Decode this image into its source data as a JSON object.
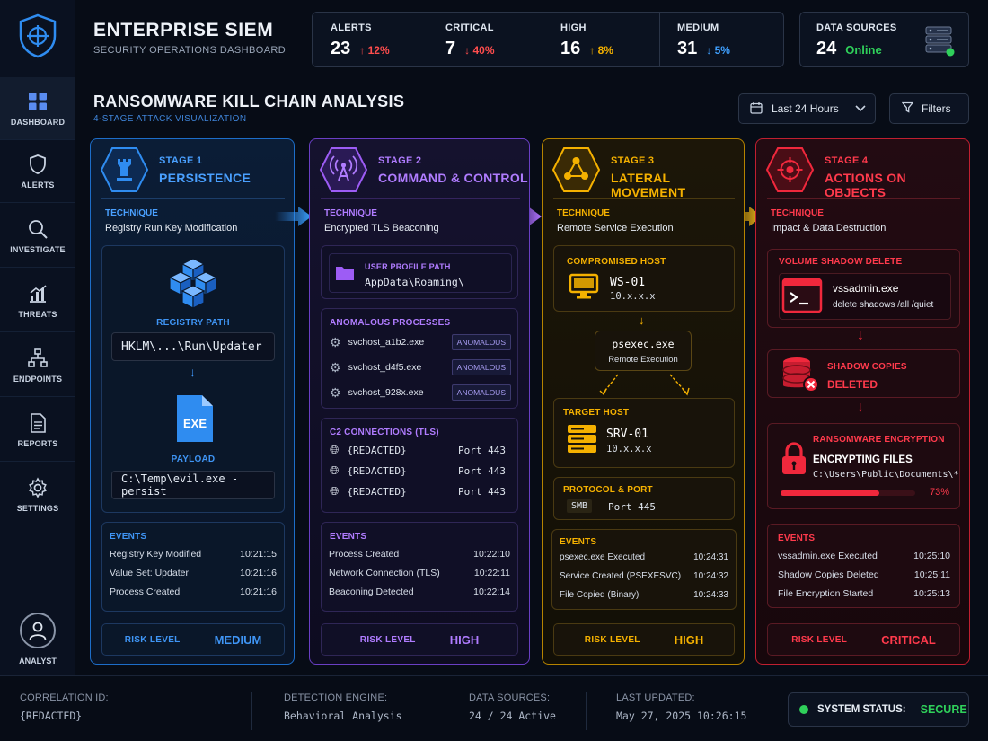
{
  "app": {
    "title": "ENTERPRISE SIEM",
    "subtitle": "SECURITY OPERATIONS DASHBOARD"
  },
  "sidebar": {
    "items": [
      {
        "label": "DASHBOARD",
        "icon": "grid-icon"
      },
      {
        "label": "ALERTS",
        "icon": "shield-icon"
      },
      {
        "label": "INVESTIGATE",
        "icon": "search-icon"
      },
      {
        "label": "THREATS",
        "icon": "chart-icon"
      },
      {
        "label": "ENDPOINTS",
        "icon": "network-icon"
      },
      {
        "label": "REPORTS",
        "icon": "document-icon"
      },
      {
        "label": "SETTINGS",
        "icon": "gear-icon"
      }
    ],
    "user_label": "ANALYST"
  },
  "stats": [
    {
      "label": "ALERTS",
      "value": "23",
      "delta": "12%",
      "direction": "up",
      "color": "#ff4d4d"
    },
    {
      "label": "CRITICAL",
      "value": "7",
      "delta": "40%",
      "direction": "down",
      "color": "#ff4d4d"
    },
    {
      "label": "HIGH",
      "value": "16",
      "delta": "8%",
      "direction": "up",
      "color": "#f5b100"
    },
    {
      "label": "MEDIUM",
      "value": "31",
      "delta": "5%",
      "direction": "down",
      "color": "#3fa0ff"
    }
  ],
  "data_sources": {
    "label": "DATA SOURCES",
    "value": "24",
    "status": "Online"
  },
  "killchain": {
    "title": "RANSOMWARE KILL CHAIN ANALYSIS",
    "subtitle": "4-STAGE ATTACK VISUALIZATION",
    "time_filter": "Last 24 Hours",
    "filters_label": "Filters"
  },
  "stage1": {
    "num": "STAGE 1",
    "name": "PERSISTENCE",
    "technique_label": "TECHNIQUE",
    "technique": "Registry Run Key Modification",
    "registry_label": "REGISTRY PATH",
    "registry_path": "HKLM\\...\\Run\\Updater",
    "exe_text": "EXE",
    "payload_label": "PAYLOAD",
    "payload": "C:\\Temp\\evil.exe -persist",
    "events_label": "EVENTS",
    "events": [
      {
        "name": "Registry Key Modified",
        "time": "10:21:15"
      },
      {
        "name": "Value Set: Updater",
        "time": "10:21:16"
      },
      {
        "name": "Process Created",
        "time": "10:21:16"
      }
    ],
    "risk_label": "RISK LEVEL",
    "risk": "MEDIUM"
  },
  "stage2": {
    "num": "STAGE 2",
    "name": "COMMAND & CONTROL",
    "technique_label": "TECHNIQUE",
    "technique": "Encrypted TLS Beaconing",
    "profile_label": "USER PROFILE PATH",
    "profile_path": "AppData\\Roaming\\",
    "proc_label": "ANOMALOUS PROCESSES",
    "processes": [
      {
        "name": "svchost_a1b2.exe",
        "badge": "ANOMALOUS"
      },
      {
        "name": "svchost_d4f5.exe",
        "badge": "ANOMALOUS"
      },
      {
        "name": "svchost_928x.exe",
        "badge": "ANOMALOUS"
      }
    ],
    "c2_label": "C2 CONNECTIONS (TLS)",
    "connections": [
      {
        "host": "{REDACTED}",
        "port": "Port 443"
      },
      {
        "host": "{REDACTED}",
        "port": "Port 443"
      },
      {
        "host": "{REDACTED}",
        "port": "Port 443"
      }
    ],
    "events_label": "EVENTS",
    "events": [
      {
        "name": "Process Created",
        "time": "10:22:10"
      },
      {
        "name": "Network Connection (TLS)",
        "time": "10:22:11"
      },
      {
        "name": "Beaconing Detected",
        "time": "10:22:14"
      }
    ],
    "risk_label": "RISK LEVEL",
    "risk": "HIGH"
  },
  "stage3": {
    "num": "STAGE 3",
    "name": "LATERAL MOVEMENT",
    "technique_label": "TECHNIQUE",
    "technique": "Remote Service Execution",
    "compromised_label": "COMPROMISED HOST",
    "compromised_host": "WS-01",
    "compromised_ip": "10.x.x.x",
    "psexec": "psexec.exe",
    "psexec_sub": "Remote Execution",
    "target_label": "TARGET HOST",
    "target_host": "SRV-01",
    "target_ip": "10.x.x.x",
    "protocol_label": "PROTOCOL & PORT",
    "protocol": "SMB",
    "port": "Port 445",
    "events_label": "EVENTS",
    "events": [
      {
        "name": "psexec.exe Executed",
        "time": "10:24:31"
      },
      {
        "name": "Service Created (PSEXESVC)",
        "time": "10:24:32"
      },
      {
        "name": "File Copied (Binary)",
        "time": "10:24:33"
      }
    ],
    "risk_label": "RISK LEVEL",
    "risk": "HIGH"
  },
  "stage4": {
    "num": "STAGE 4",
    "name": "ACTIONS ON OBJECTS",
    "technique_label": "TECHNIQUE",
    "technique": "Impact & Data Destruction",
    "vss_label": "VOLUME SHADOW DELETE",
    "vss_cmd": "vssadmin.exe",
    "vss_args": "delete shadows /all /quiet",
    "shadow_label": "SHADOW COPIES",
    "shadow_status": "DELETED",
    "enc_label": "RANSOMWARE ENCRYPTION",
    "enc_title": "ENCRYPTING FILES",
    "enc_path": "C:\\Users\\Public\\Documents\\*",
    "enc_progress_text": "73%",
    "enc_progress": 0.73,
    "events_label": "EVENTS",
    "events": [
      {
        "name": "vssadmin.exe Executed",
        "time": "10:25:10"
      },
      {
        "name": "Shadow Copies Deleted",
        "time": "10:25:11"
      },
      {
        "name": "File Encryption Started",
        "time": "10:25:13"
      }
    ],
    "risk_label": "RISK LEVEL",
    "risk": "CRITICAL"
  },
  "footer": {
    "correlation_label": "CORRELATION ID:",
    "correlation": "{REDACTED}",
    "engine_label": "DETECTION ENGINE:",
    "engine": "Behavioral Analysis",
    "sources_label": "DATA SOURCES:",
    "sources": "24 / 24 Active",
    "updated_label": "LAST UPDATED:",
    "updated": "May 27, 2025 10:26:15",
    "status_label": "SYSTEM STATUS:",
    "status": "SECURE"
  },
  "colors": {
    "blue": "#2f8cf0",
    "purple": "#9d5cf5",
    "amber": "#f5b100",
    "red": "#f0283c",
    "green": "#2fd05a"
  }
}
